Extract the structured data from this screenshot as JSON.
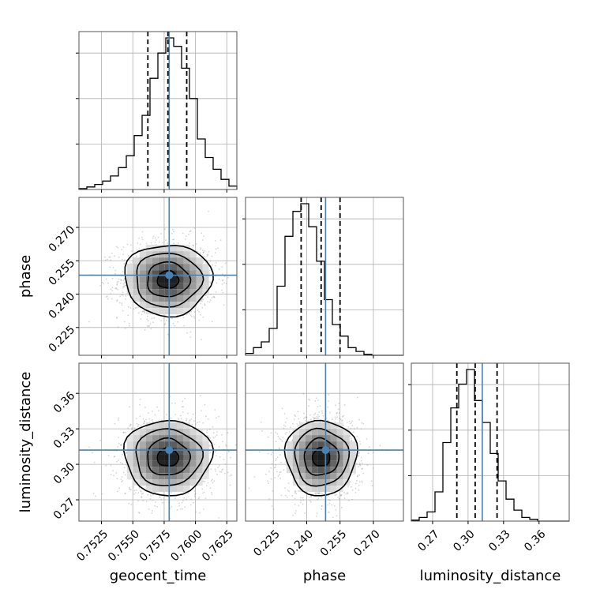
{
  "chart_data": {
    "type": "corner",
    "truth_color": "#4682b4",
    "parameters": [
      "geocent_time",
      "phase",
      "luminosity_distance"
    ],
    "axis_labels": [
      "geocent_time",
      "phase",
      "luminosity_distance"
    ],
    "ranges": [
      [
        0.7507,
        0.7633
      ],
      [
        0.2125,
        0.2835
      ],
      [
        0.252,
        0.3855
      ]
    ],
    "tick_values": [
      [
        0.7525,
        0.755,
        0.7575,
        0.76,
        0.7625
      ],
      [
        0.225,
        0.24,
        0.255,
        0.27
      ],
      [
        0.27,
        0.3,
        0.33,
        0.36
      ]
    ],
    "tick_labels": [
      [
        "0.7525",
        "0.7550",
        "0.7575",
        "0.7600",
        "0.7625"
      ],
      [
        "0.225",
        "0.240",
        "0.255",
        "0.270"
      ],
      [
        "0.27",
        "0.30",
        "0.33",
        "0.36"
      ]
    ],
    "truths": [
      0.7579,
      0.2485,
      0.312
    ],
    "quantiles": [
      [
        0.7562,
        0.7578,
        0.7593
      ],
      [
        0.2375,
        0.2465,
        0.255
      ],
      [
        0.2905,
        0.306,
        0.3245
      ]
    ],
    "histograms": [
      {
        "parameter": "geocent_time",
        "edges": [
          0.7507,
          0.75133,
          0.75196,
          0.75259,
          0.75322,
          0.75385,
          0.75448,
          0.75511,
          0.75574,
          0.75637,
          0.757,
          0.75763,
          0.75826,
          0.75889,
          0.75952,
          0.76015,
          0.76078,
          0.76141,
          0.76204,
          0.76267,
          0.7633
        ],
        "counts": [
          0.005,
          0.015,
          0.03,
          0.05,
          0.08,
          0.13,
          0.2,
          0.32,
          0.44,
          0.66,
          0.81,
          0.9,
          0.85,
          0.72,
          0.54,
          0.3,
          0.19,
          0.12,
          0.06,
          0.02
        ]
      },
      {
        "parameter": "phase",
        "edges": [
          0.2125,
          0.21605,
          0.2196,
          0.22315,
          0.2267,
          0.23025,
          0.2338,
          0.23735,
          0.2409,
          0.24445,
          0.248,
          0.25155,
          0.2551,
          0.25865,
          0.2622,
          0.26575,
          0.2693,
          0.27285,
          0.2764,
          0.27995,
          0.2835
        ],
        "counts": [
          0.01,
          0.04,
          0.07,
          0.14,
          0.36,
          0.62,
          0.75,
          0.79,
          0.67,
          0.49,
          0.29,
          0.16,
          0.1,
          0.04,
          0.02,
          0.005,
          0.0,
          0.0,
          0.0,
          0.0
        ]
      },
      {
        "parameter": "luminosity_distance",
        "edges": [
          0.252,
          0.258675,
          0.26535,
          0.272025,
          0.2787,
          0.285375,
          0.29205,
          0.298725,
          0.3054,
          0.312075,
          0.31875,
          0.325425,
          0.3321,
          0.338775,
          0.34545,
          0.352125,
          0.3588,
          0.365475,
          0.37215,
          0.378825,
          0.3855
        ],
        "counts": [
          0.005,
          0.02,
          0.05,
          0.16,
          0.43,
          0.62,
          0.75,
          0.83,
          0.66,
          0.54,
          0.37,
          0.22,
          0.12,
          0.06,
          0.02,
          0.01,
          0.0,
          0.0,
          0.0,
          0.0
        ]
      }
    ],
    "pairs": [
      {
        "x_param": "geocent_time",
        "y_param": "phase",
        "x_std": 0.0017,
        "y_std": 0.0078,
        "contour_scales": [
          0.5,
          1.0,
          1.55,
          2.05
        ]
      },
      {
        "x_param": "geocent_time",
        "y_param": "luminosity_distance",
        "x_std": 0.0017,
        "y_std": 0.0155,
        "contour_scales": [
          0.5,
          1.0,
          1.55,
          2.05
        ]
      },
      {
        "x_param": "phase",
        "y_param": "luminosity_distance",
        "x_std": 0.0078,
        "y_std": 0.0155,
        "contour_scales": [
          0.5,
          1.0,
          1.55,
          2.05
        ]
      }
    ],
    "grid": true
  }
}
